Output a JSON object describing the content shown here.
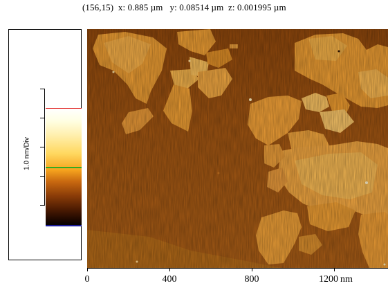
{
  "readout": {
    "pixel": "(156,15)",
    "x_label": "x:",
    "x_value": "0.885 µm",
    "y_label": "y:",
    "y_value": "0.08514 µm",
    "z_label": "z:",
    "z_value": "0.001995 µm"
  },
  "scale_bar": {
    "label": "1.0 nm/Div",
    "colors": {
      "top_marker": "#e02020",
      "mid_marker": "#33aa22",
      "bottom_marker": "#1c1c9a"
    }
  },
  "x_axis": {
    "ticks": [
      "0",
      "400",
      "800",
      "1200"
    ],
    "unit": "nm"
  },
  "image": {
    "colors": {
      "substrate": "#9a5110",
      "flake": "#e8982e",
      "flake_bright": "#f7c060"
    }
  }
}
